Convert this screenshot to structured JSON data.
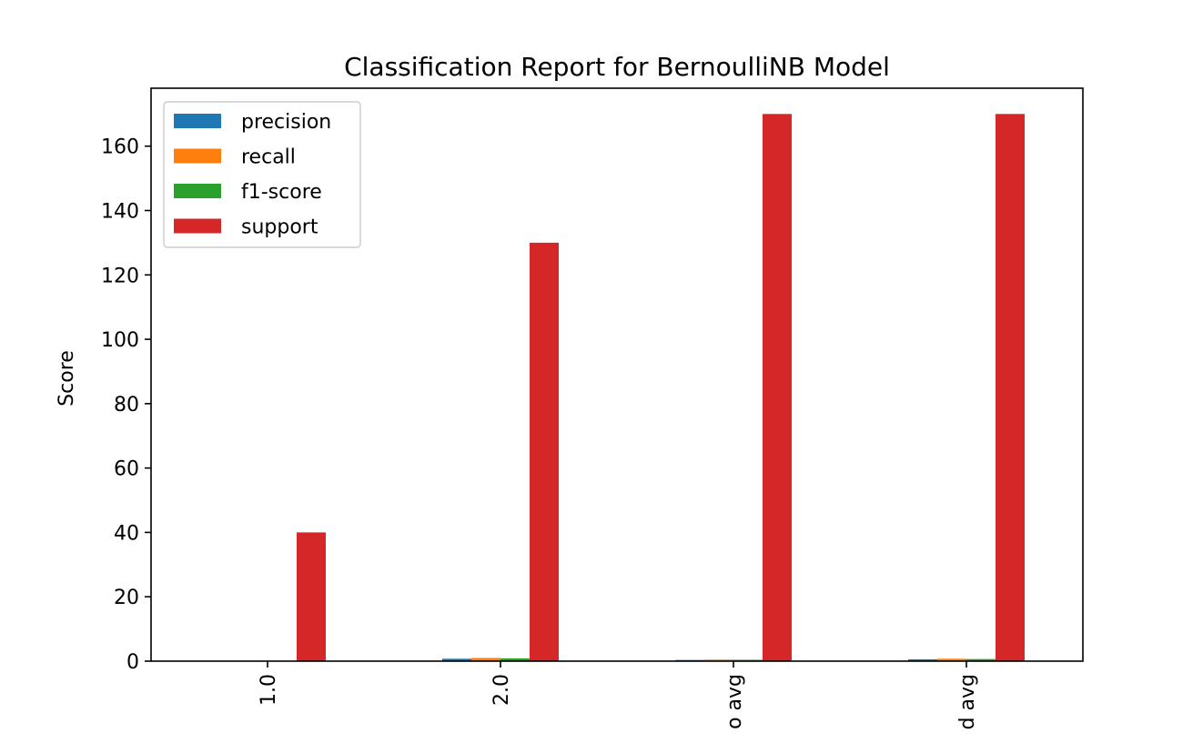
{
  "chart_data": {
    "type": "bar",
    "title": "Classification Report for BernoulliNB Model",
    "xlabel": "",
    "ylabel": "Score",
    "ylim": [
      0,
      178
    ],
    "yticks": [
      0,
      20,
      40,
      60,
      80,
      100,
      120,
      140,
      160
    ],
    "categories": [
      "1.0",
      "2.0",
      "macro avg",
      "weighted avg"
    ],
    "category_visible_text": [
      "1.0",
      "2.0",
      "o avg",
      "d avg"
    ],
    "series": [
      {
        "name": "precision",
        "color": "#1f77b4",
        "values": [
          0.0,
          0.76,
          0.38,
          0.58
        ]
      },
      {
        "name": "recall",
        "color": "#ff7f0e",
        "values": [
          0.0,
          1.0,
          0.5,
          0.76
        ]
      },
      {
        "name": "f1-score",
        "color": "#2ca02c",
        "values": [
          0.0,
          0.87,
          0.43,
          0.66
        ]
      },
      {
        "name": "support",
        "color": "#d62728",
        "values": [
          40,
          130,
          170,
          170
        ]
      }
    ],
    "legend": "top-left",
    "grid": false
  }
}
